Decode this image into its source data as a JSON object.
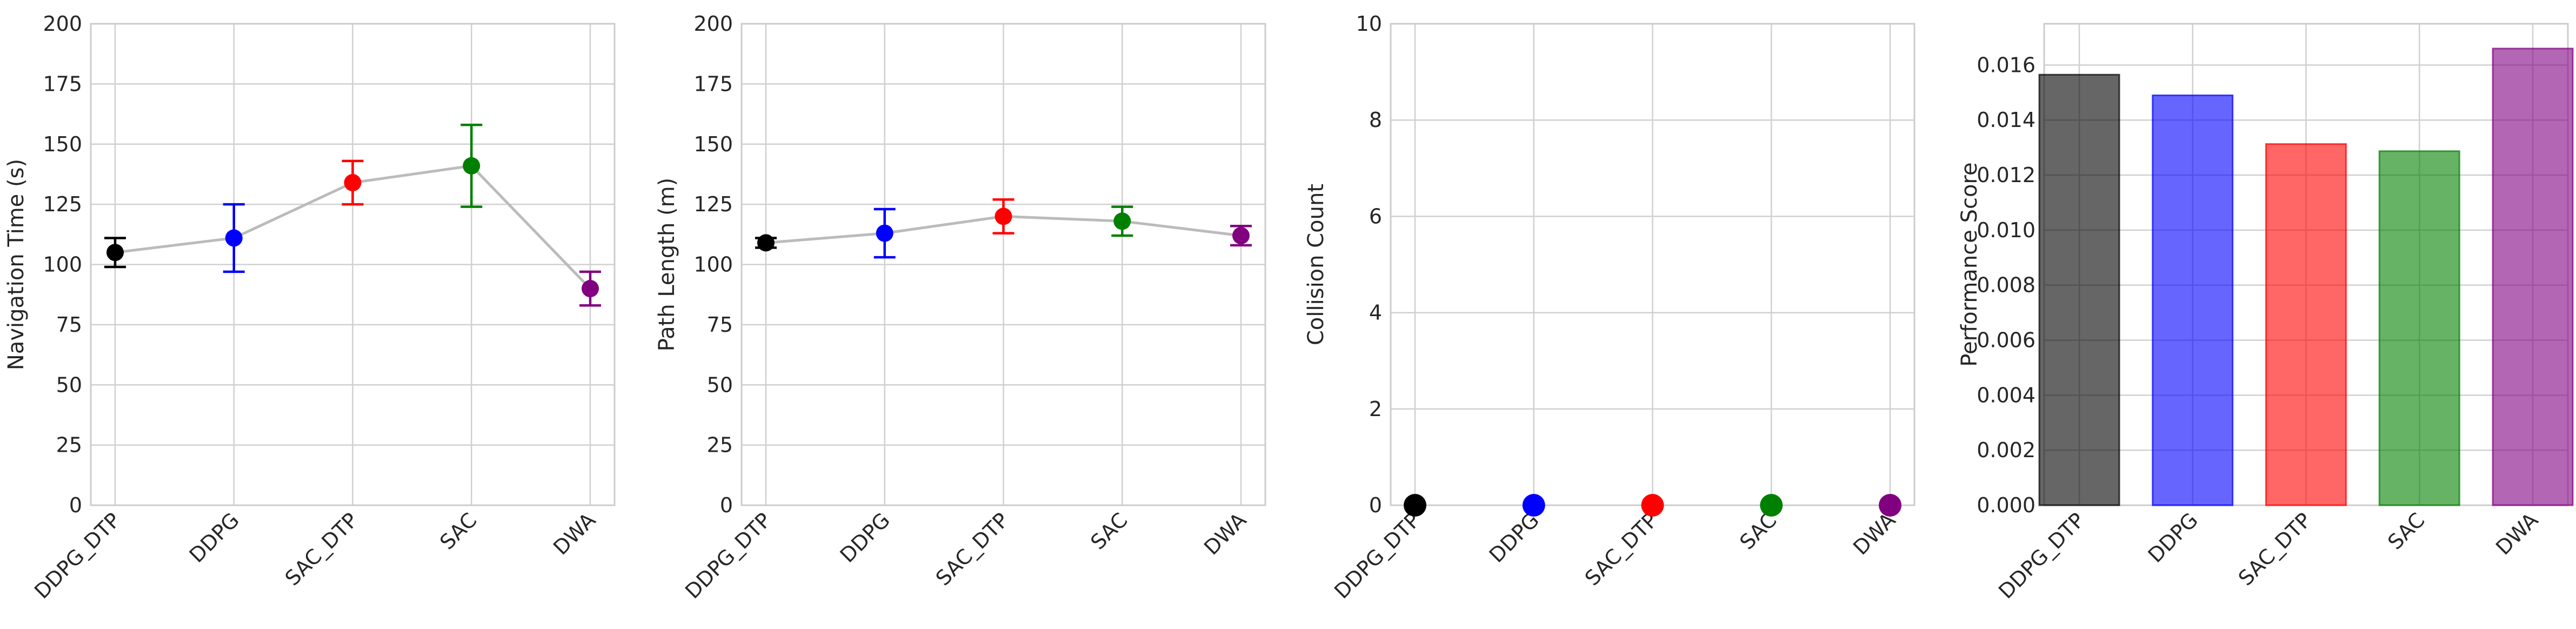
{
  "chart_data": [
    {
      "type": "line",
      "ylabel": "Navigation Time (s)",
      "categories": [
        "DDPG_DTP",
        "DDPG",
        "SAC_DTP",
        "SAC",
        "DWA"
      ],
      "ylim": [
        0,
        200
      ],
      "yticks": [
        "0",
        "25",
        "50",
        "75",
        "100",
        "125",
        "150",
        "175",
        "200"
      ],
      "series": [
        {
          "values": [
            105,
            111,
            134,
            141,
            90
          ],
          "error": [
            6,
            14,
            9,
            17,
            7
          ],
          "colors": [
            "#000000",
            "#0000ff",
            "#ff0000",
            "#008000",
            "#800080"
          ]
        }
      ],
      "line_color": "#bbbbbb",
      "grid": true
    },
    {
      "type": "line",
      "ylabel": "Path Length (m)",
      "categories": [
        "DDPG_DTP",
        "DDPG",
        "SAC_DTP",
        "SAC",
        "DWA"
      ],
      "ylim": [
        0,
        200
      ],
      "yticks": [
        "0",
        "25",
        "50",
        "75",
        "100",
        "125",
        "150",
        "175",
        "200"
      ],
      "series": [
        {
          "values": [
            109,
            113,
            120,
            118,
            112
          ],
          "error": [
            2,
            10,
            7,
            6,
            4
          ],
          "colors": [
            "#000000",
            "#0000ff",
            "#ff0000",
            "#008000",
            "#800080"
          ]
        }
      ],
      "line_color": "#bbbbbb",
      "grid": true
    },
    {
      "type": "scatter",
      "ylabel": "Collision Count",
      "categories": [
        "DDPG_DTP",
        "DDPG",
        "SAC_DTP",
        "SAC",
        "DWA"
      ],
      "ylim": [
        0,
        10
      ],
      "yticks": [
        "0",
        "2",
        "4",
        "6",
        "8",
        "10"
      ],
      "series": [
        {
          "values": [
            0,
            0,
            0,
            0,
            0
          ],
          "colors": [
            "#000000",
            "#0000ff",
            "#ff0000",
            "#008000",
            "#800080"
          ]
        }
      ],
      "grid": true
    },
    {
      "type": "bar",
      "ylabel": "Performance Score",
      "categories": [
        "DDPG_DTP",
        "DDPG",
        "SAC_DTP",
        "SAC",
        "DWA"
      ],
      "ylim": [
        0,
        0.0175
      ],
      "yticks": [
        "0.000",
        "0.002",
        "0.004",
        "0.006",
        "0.008",
        "0.010",
        "0.012",
        "0.014",
        "0.016"
      ],
      "series": [
        {
          "values": [
            0.01565,
            0.0149,
            0.01313,
            0.01287,
            0.0166
          ],
          "colors": [
            "#000000",
            "#0000ff",
            "#ff0000",
            "#008000",
            "#800080"
          ]
        }
      ],
      "bar_alpha": 0.6,
      "grid": true
    }
  ]
}
